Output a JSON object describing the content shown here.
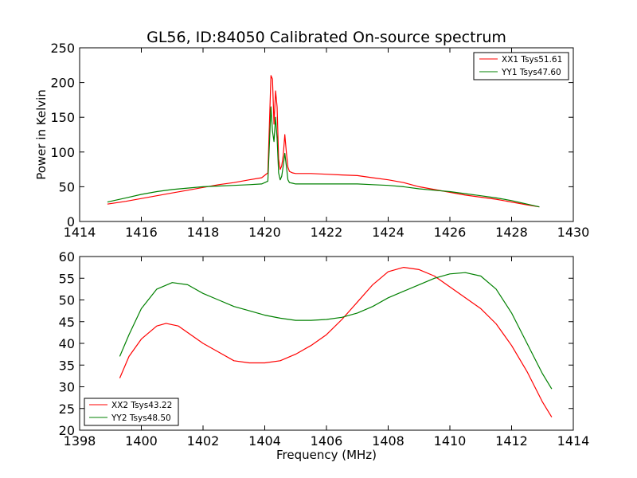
{
  "chart_data": [
    {
      "type": "line",
      "title": "GL56, ID:84050 Calibrated On-source spectrum",
      "xlabel": "",
      "ylabel": "Power in Kelvin",
      "xlim": [
        1414,
        1430
      ],
      "ylim": [
        0,
        250
      ],
      "xticks": [
        "1414",
        "1416",
        "1418",
        "1420",
        "1422",
        "1424",
        "1426",
        "1428",
        "1430"
      ],
      "yticks": [
        "0",
        "50",
        "100",
        "150",
        "200",
        "250"
      ],
      "grid": false,
      "legend": "top-right",
      "series": [
        {
          "name": "XX1 Tsys51.61",
          "color": "#ff0000",
          "x": [
            1414.9,
            1415.5,
            1416,
            1416.5,
            1417,
            1417.5,
            1418,
            1418.5,
            1419,
            1419.5,
            1419.9,
            1420.1,
            1420.2,
            1420.25,
            1420.3,
            1420.35,
            1420.4,
            1420.45,
            1420.5,
            1420.55,
            1420.6,
            1420.65,
            1420.7,
            1420.75,
            1420.8,
            1420.9,
            1421,
            1421.5,
            1422,
            1422.5,
            1423,
            1423.5,
            1424,
            1424.5,
            1425,
            1425.5,
            1426,
            1426.5,
            1427,
            1427.5,
            1428,
            1428.5,
            1428.9
          ],
          "y": [
            25,
            29,
            33,
            37,
            41,
            45,
            49,
            53,
            56,
            60,
            63,
            70,
            210,
            205,
            140,
            188,
            165,
            90,
            75,
            80,
            95,
            125,
            100,
            78,
            72,
            70,
            69,
            69,
            68,
            67,
            66,
            63,
            60,
            56,
            50,
            46,
            42,
            38,
            35,
            32,
            28,
            24,
            21
          ]
        },
        {
          "name": "YY1 Tsys47.60",
          "color": "#008000",
          "x": [
            1414.9,
            1415.5,
            1416,
            1416.5,
            1417,
            1417.5,
            1418,
            1418.5,
            1419,
            1419.5,
            1419.9,
            1420.1,
            1420.2,
            1420.25,
            1420.3,
            1420.35,
            1420.4,
            1420.45,
            1420.5,
            1420.55,
            1420.6,
            1420.65,
            1420.7,
            1420.75,
            1420.8,
            1420.9,
            1421,
            1421.5,
            1422,
            1422.5,
            1423,
            1423.5,
            1424,
            1424.5,
            1425,
            1425.5,
            1426,
            1426.5,
            1427,
            1427.5,
            1428,
            1428.5,
            1428.9
          ],
          "y": [
            28,
            34,
            39,
            43,
            46,
            48,
            50,
            51,
            52,
            53,
            54,
            58,
            165,
            130,
            115,
            150,
            120,
            70,
            60,
            65,
            80,
            98,
            80,
            60,
            56,
            55,
            54,
            54,
            54,
            54,
            54,
            53,
            52,
            50,
            47,
            45,
            43,
            40,
            37,
            34,
            30,
            25,
            21
          ]
        }
      ]
    },
    {
      "type": "line",
      "title": "",
      "xlabel": "Frequency (MHz)",
      "ylabel": "",
      "xlim": [
        1398,
        1414
      ],
      "ylim": [
        20,
        60
      ],
      "xticks": [
        "1398",
        "1400",
        "1402",
        "1404",
        "1406",
        "1408",
        "1410",
        "1412",
        "1414"
      ],
      "yticks": [
        "20",
        "25",
        "30",
        "35",
        "40",
        "45",
        "50",
        "55",
        "60"
      ],
      "grid": false,
      "legend": "bottom-left",
      "series": [
        {
          "name": "XX2 Tsys43.22",
          "color": "#ff0000",
          "x": [
            1399.3,
            1399.6,
            1400,
            1400.5,
            1400.8,
            1401.2,
            1401.6,
            1402,
            1402.5,
            1403,
            1403.5,
            1404,
            1404.5,
            1405,
            1405.5,
            1406,
            1406.5,
            1407,
            1407.5,
            1408,
            1408.5,
            1409,
            1409.5,
            1410,
            1410.5,
            1411,
            1411.5,
            1412,
            1412.5,
            1413,
            1413.3
          ],
          "y": [
            32,
            37,
            41,
            44,
            44.6,
            44,
            42,
            40,
            38,
            36,
            35.5,
            35.5,
            36,
            37.5,
            39.5,
            42,
            45.5,
            49.5,
            53.5,
            56.5,
            57.5,
            57,
            55.5,
            53,
            50.5,
            48,
            44.5,
            39.5,
            33.5,
            26.5,
            23
          ]
        },
        {
          "name": "YY2 Tsys48.50",
          "color": "#008000",
          "x": [
            1399.3,
            1399.6,
            1400,
            1400.5,
            1401,
            1401.5,
            1402,
            1402.5,
            1403,
            1403.5,
            1404,
            1404.5,
            1405,
            1405.5,
            1406,
            1406.5,
            1407,
            1407.5,
            1408,
            1408.5,
            1409,
            1409.5,
            1410,
            1410.5,
            1411,
            1411.5,
            1412,
            1412.5,
            1413,
            1413.3
          ],
          "y": [
            37,
            42,
            48,
            52.5,
            54,
            53.5,
            51.5,
            50,
            48.5,
            47.5,
            46.5,
            45.8,
            45.3,
            45.3,
            45.5,
            46,
            47,
            48.5,
            50.5,
            52,
            53.5,
            55,
            56,
            56.3,
            55.5,
            52.5,
            47,
            40,
            33,
            29.5
          ]
        }
      ]
    }
  ]
}
